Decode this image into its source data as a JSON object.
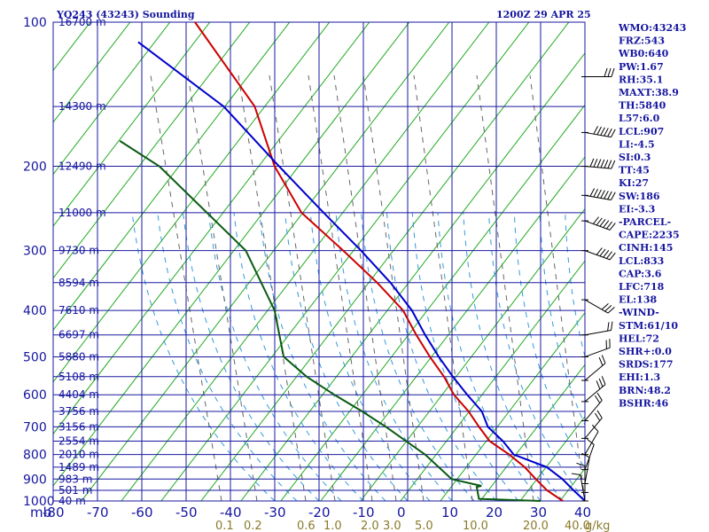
{
  "header": {
    "station": "YO243 (43243) Sounding",
    "time": "1200Z 29 APR 25"
  },
  "indices": [
    "WMO:43243",
    "FRZ:543",
    "WB0:640",
    "PW:1.67",
    "RH:35.1",
    "MAXT:38.9",
    "TH:5840",
    "L57:6.0",
    "LCL:907",
    "LI:-4.5",
    "SI:0.3",
    "TT:45",
    "KI:27",
    "SW:186",
    "EI:-3.3",
    "-PARCEL-",
    "CAPE:2235",
    "CINH:145",
    "LCL:833",
    "CAP:3.6",
    "LFC:718",
    "EL:138",
    "-WIND-",
    "STM:61/10",
    "HEL:72",
    "SHR+:0.0",
    "SRDS:177",
    "EHI:1.3",
    "BRN:48.2",
    "BSHR:46"
  ],
  "chart_data": {
    "type": "line",
    "title": "YO243 (43243) Sounding",
    "subtitle": "1200Z 29 APR 25",
    "xlabel": "",
    "ylabel": "mb",
    "y_axis_label": "mb",
    "xlim": [
      -80,
      40
    ],
    "ylim": [
      1000,
      100
    ],
    "y_scale": "log (inverted)",
    "x_ticks": [
      -80,
      -70,
      -60,
      -50,
      -40,
      -30,
      -20,
      -10,
      0,
      10,
      20,
      30,
      40
    ],
    "y_ticks": [
      100,
      200,
      300,
      400,
      500,
      600,
      700,
      800,
      900,
      1000
    ],
    "grid": true,
    "height_labels": [
      {
        "p": 100,
        "label": "16700 m"
      },
      {
        "p": 150,
        "label": "14300 m"
      },
      {
        "p": 200,
        "label": "12490 m"
      },
      {
        "p": 250,
        "label": "11000 m"
      },
      {
        "p": 300,
        "label": "9730 m"
      },
      {
        "p": 350,
        "label": "8594 m"
      },
      {
        "p": 400,
        "label": "7610 m"
      },
      {
        "p": 450,
        "label": "6697 m"
      },
      {
        "p": 500,
        "label": "5880 m"
      },
      {
        "p": 550,
        "label": "5108 m"
      },
      {
        "p": 600,
        "label": "4404 m"
      },
      {
        "p": 650,
        "label": "3756 m"
      },
      {
        "p": 700,
        "label": "3156 m"
      },
      {
        "p": 750,
        "label": "2554 m"
      },
      {
        "p": 800,
        "label": "2010 m"
      },
      {
        "p": 850,
        "label": "1489 m"
      },
      {
        "p": 900,
        "label": "983 m"
      },
      {
        "p": 950,
        "label": "501 m"
      },
      {
        "p": 1000,
        "label": "40 m"
      }
    ],
    "mixing_ratio_labels": [
      "0.1",
      "0.2",
      "0.6",
      "1.0",
      "2.0",
      "3.0",
      "5.0",
      "10.0",
      "20.0",
      "40.0"
    ],
    "mixing_ratio_unit": "g/kg",
    "mixing_ratio_values": [
      0.1,
      0.2,
      0.6,
      1.0,
      2.0,
      3.0,
      5.0,
      10.0,
      20.0,
      40.0
    ],
    "series": [
      {
        "role": "temperature",
        "color": "#cc0000",
        "points": [
          [
            100,
            -68
          ],
          [
            150,
            -51
          ],
          [
            200,
            -44
          ],
          [
            250,
            -36
          ],
          [
            300,
            -25
          ],
          [
            350,
            -16
          ],
          [
            400,
            -9
          ],
          [
            450,
            -5
          ],
          [
            500,
            -1
          ],
          [
            550,
            3
          ],
          [
            600,
            6
          ],
          [
            650,
            10
          ],
          [
            700,
            13
          ],
          [
            750,
            16
          ],
          [
            800,
            21
          ],
          [
            850,
            25
          ],
          [
            900,
            28
          ],
          [
            950,
            31
          ],
          [
            1000,
            35
          ]
        ]
      },
      {
        "role": "dewpoint",
        "color": "#0a5a12",
        "points": [
          [
            177,
            -80
          ],
          [
            200,
            -70
          ],
          [
            300,
            -47
          ],
          [
            400,
            -38
          ],
          [
            500,
            -34
          ],
          [
            550,
            -28
          ],
          [
            600,
            -21
          ],
          [
            650,
            -14
          ],
          [
            700,
            -8
          ],
          [
            800,
            2
          ],
          [
            900,
            9
          ],
          [
            930,
            16
          ],
          [
            935,
            15
          ],
          [
            990,
            16
          ],
          [
            1000,
            30
          ]
        ]
      },
      {
        "role": "parcel",
        "color": "#0000cc",
        "points": [
          [
            110,
            -80
          ],
          [
            150,
            -58
          ],
          [
            200,
            -43
          ],
          [
            250,
            -31
          ],
          [
            300,
            -21
          ],
          [
            350,
            -13
          ],
          [
            400,
            -7
          ],
          [
            450,
            -3
          ],
          [
            500,
            1
          ],
          [
            550,
            5
          ],
          [
            600,
            9
          ],
          [
            650,
            13
          ],
          [
            700,
            15
          ],
          [
            750,
            19
          ],
          [
            800,
            22
          ],
          [
            850,
            30
          ],
          [
            900,
            34
          ],
          [
            950,
            37
          ],
          [
            1000,
            40
          ]
        ]
      }
    ],
    "wind_barbs": [
      {
        "p": 130,
        "dir": 270,
        "spd": 30
      },
      {
        "p": 170,
        "dir": 280,
        "spd": 55
      },
      {
        "p": 200,
        "dir": 275,
        "spd": 65
      },
      {
        "p": 230,
        "dir": 280,
        "spd": 70
      },
      {
        "p": 260,
        "dir": 290,
        "spd": 60
      },
      {
        "p": 300,
        "dir": 290,
        "spd": 45
      },
      {
        "p": 380,
        "dir": 300,
        "spd": 25
      },
      {
        "p": 450,
        "dir": 260,
        "spd": 20
      },
      {
        "p": 500,
        "dir": 250,
        "spd": 20
      },
      {
        "p": 560,
        "dir": 230,
        "spd": 20
      },
      {
        "p": 620,
        "dir": 230,
        "spd": 25
      },
      {
        "p": 680,
        "dir": 220,
        "spd": 15
      },
      {
        "p": 740,
        "dir": 220,
        "spd": 15
      },
      {
        "p": 800,
        "dir": 210,
        "spd": 10
      },
      {
        "p": 860,
        "dir": 200,
        "spd": 10
      },
      {
        "p": 920,
        "dir": 190,
        "spd": 10
      },
      {
        "p": 960,
        "dir": 180,
        "spd": 10
      },
      {
        "p": 1000,
        "dir": 170,
        "spd": 10
      }
    ]
  }
}
